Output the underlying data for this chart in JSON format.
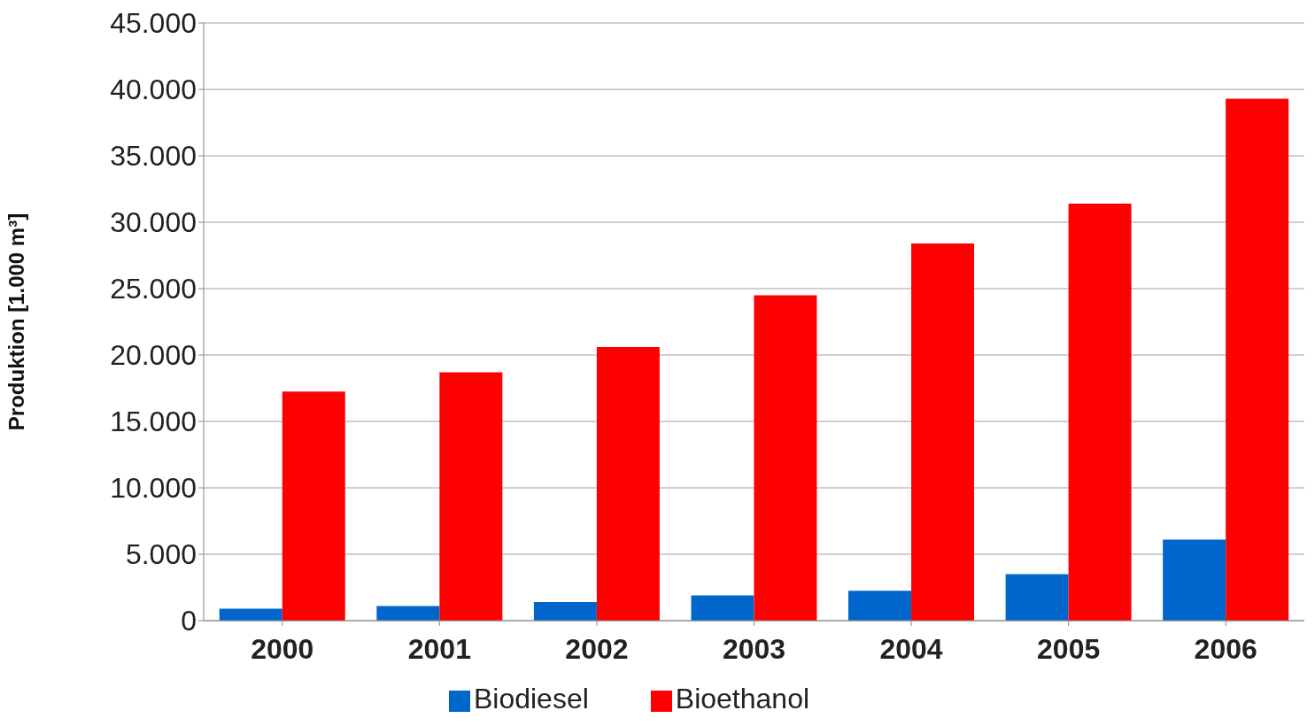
{
  "chart_data": {
    "type": "bar",
    "ylabel": "Produktion [1.000 m³]",
    "categories": [
      "2000",
      "2001",
      "2002",
      "2003",
      "2004",
      "2005",
      "2006"
    ],
    "series": [
      {
        "name": "Biodiesel",
        "color": "#0066cc",
        "values": [
          900,
          1100,
          1400,
          1900,
          2250,
          3500,
          6100
        ]
      },
      {
        "name": "Bioethanol",
        "color": "#ff0000",
        "values": [
          17250,
          18700,
          20600,
          24500,
          28400,
          31400,
          39300
        ]
      }
    ],
    "ylim": [
      0,
      45000
    ],
    "yticks": [
      {
        "value": 0,
        "label": "0"
      },
      {
        "value": 5000,
        "label": "5.000"
      },
      {
        "value": 10000,
        "label": "10.000"
      },
      {
        "value": 15000,
        "label": "15.000"
      },
      {
        "value": 20000,
        "label": "20.000"
      },
      {
        "value": 25000,
        "label": "25.000"
      },
      {
        "value": 30000,
        "label": "30.000"
      },
      {
        "value": 35000,
        "label": "35.000"
      },
      {
        "value": 40000,
        "label": "40.000"
      },
      {
        "value": 45000,
        "label": "45.000"
      }
    ],
    "grid": "y",
    "legend": "bottom"
  }
}
